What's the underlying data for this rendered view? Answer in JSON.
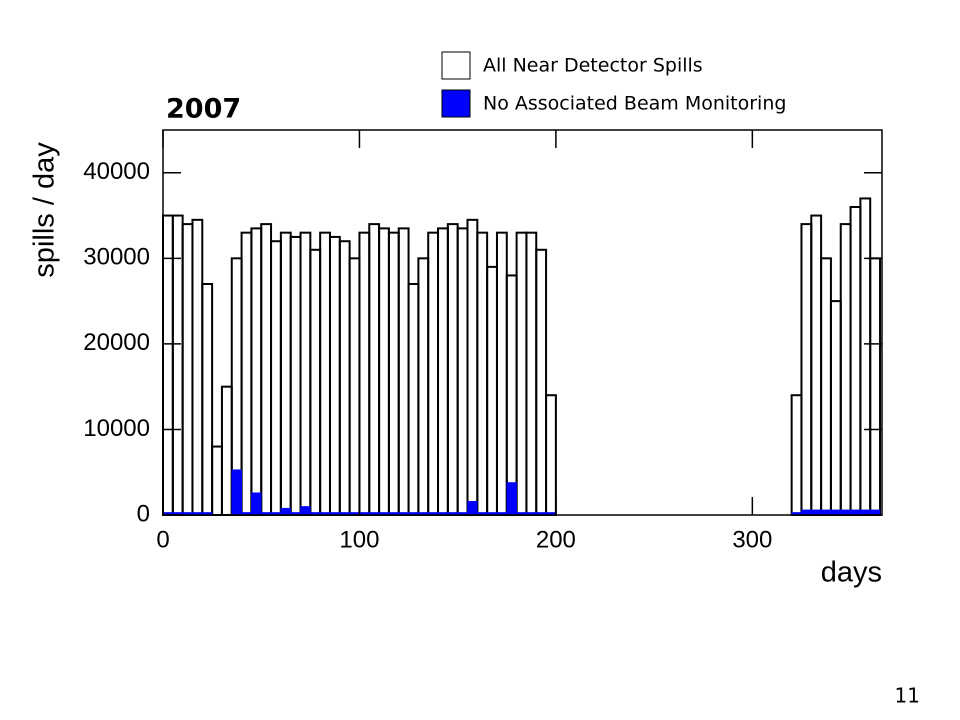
{
  "chart_data": {
    "type": "histogram",
    "title": "2007",
    "xlabel": "days",
    "ylabel": "spills / day",
    "bins": [
      0,
      5,
      10,
      15,
      20,
      25,
      30,
      35,
      40,
      45,
      50,
      55,
      60,
      65,
      70,
      75,
      80,
      85,
      90,
      95,
      100,
      105,
      110,
      115,
      120,
      125,
      130,
      135,
      140,
      145,
      150,
      155,
      160,
      165,
      170,
      175,
      180,
      185,
      190,
      195,
      200,
      205,
      210,
      215,
      220,
      225,
      230,
      235,
      240,
      245,
      250,
      255,
      260,
      265,
      270,
      275,
      280,
      285,
      290,
      295,
      300,
      305,
      310,
      315,
      320,
      325,
      330,
      335,
      340,
      345,
      350,
      355,
      360,
      365
    ],
    "series": [
      {
        "name": "All Near Detector Spills",
        "color": "#000000",
        "filled": false,
        "values": [
          35000,
          35000,
          34000,
          34500,
          27000,
          8000,
          15000,
          30000,
          33000,
          33500,
          34000,
          32000,
          33000,
          32500,
          33000,
          31000,
          33000,
          32500,
          32000,
          30000,
          33000,
          34000,
          33500,
          33000,
          33500,
          27000,
          30000,
          33000,
          33500,
          34000,
          33500,
          34500,
          33000,
          29000,
          33000,
          28000,
          33000,
          33000,
          31000,
          14000,
          0,
          0,
          0,
          0,
          0,
          0,
          0,
          0,
          0,
          0,
          0,
          0,
          0,
          0,
          0,
          0,
          0,
          0,
          0,
          0,
          0,
          0,
          0,
          0,
          14000,
          34000,
          35000,
          30000,
          25000,
          34000,
          36000,
          37000,
          30000
        ]
      },
      {
        "name": "No Associated Beam Monitoring",
        "color": "#0000ff",
        "filled": true,
        "values": [
          300,
          300,
          300,
          300,
          300,
          0,
          0,
          5300,
          300,
          2600,
          300,
          300,
          800,
          300,
          1000,
          300,
          300,
          300,
          300,
          300,
          300,
          300,
          300,
          300,
          300,
          300,
          300,
          300,
          300,
          300,
          300,
          1600,
          300,
          300,
          300,
          3800,
          300,
          300,
          300,
          300,
          0,
          0,
          0,
          0,
          0,
          0,
          0,
          0,
          0,
          0,
          0,
          0,
          0,
          0,
          0,
          0,
          0,
          0,
          0,
          0,
          0,
          0,
          0,
          0,
          300,
          600,
          600,
          600,
          600,
          600,
          600,
          600,
          600
        ]
      }
    ],
    "xlim": [
      0,
      366
    ],
    "xticks": [
      0,
      100,
      200,
      300
    ],
    "ylim": [
      0,
      45000
    ],
    "yticks": [
      0,
      10000,
      20000,
      30000,
      40000
    ]
  },
  "page_number": "11"
}
